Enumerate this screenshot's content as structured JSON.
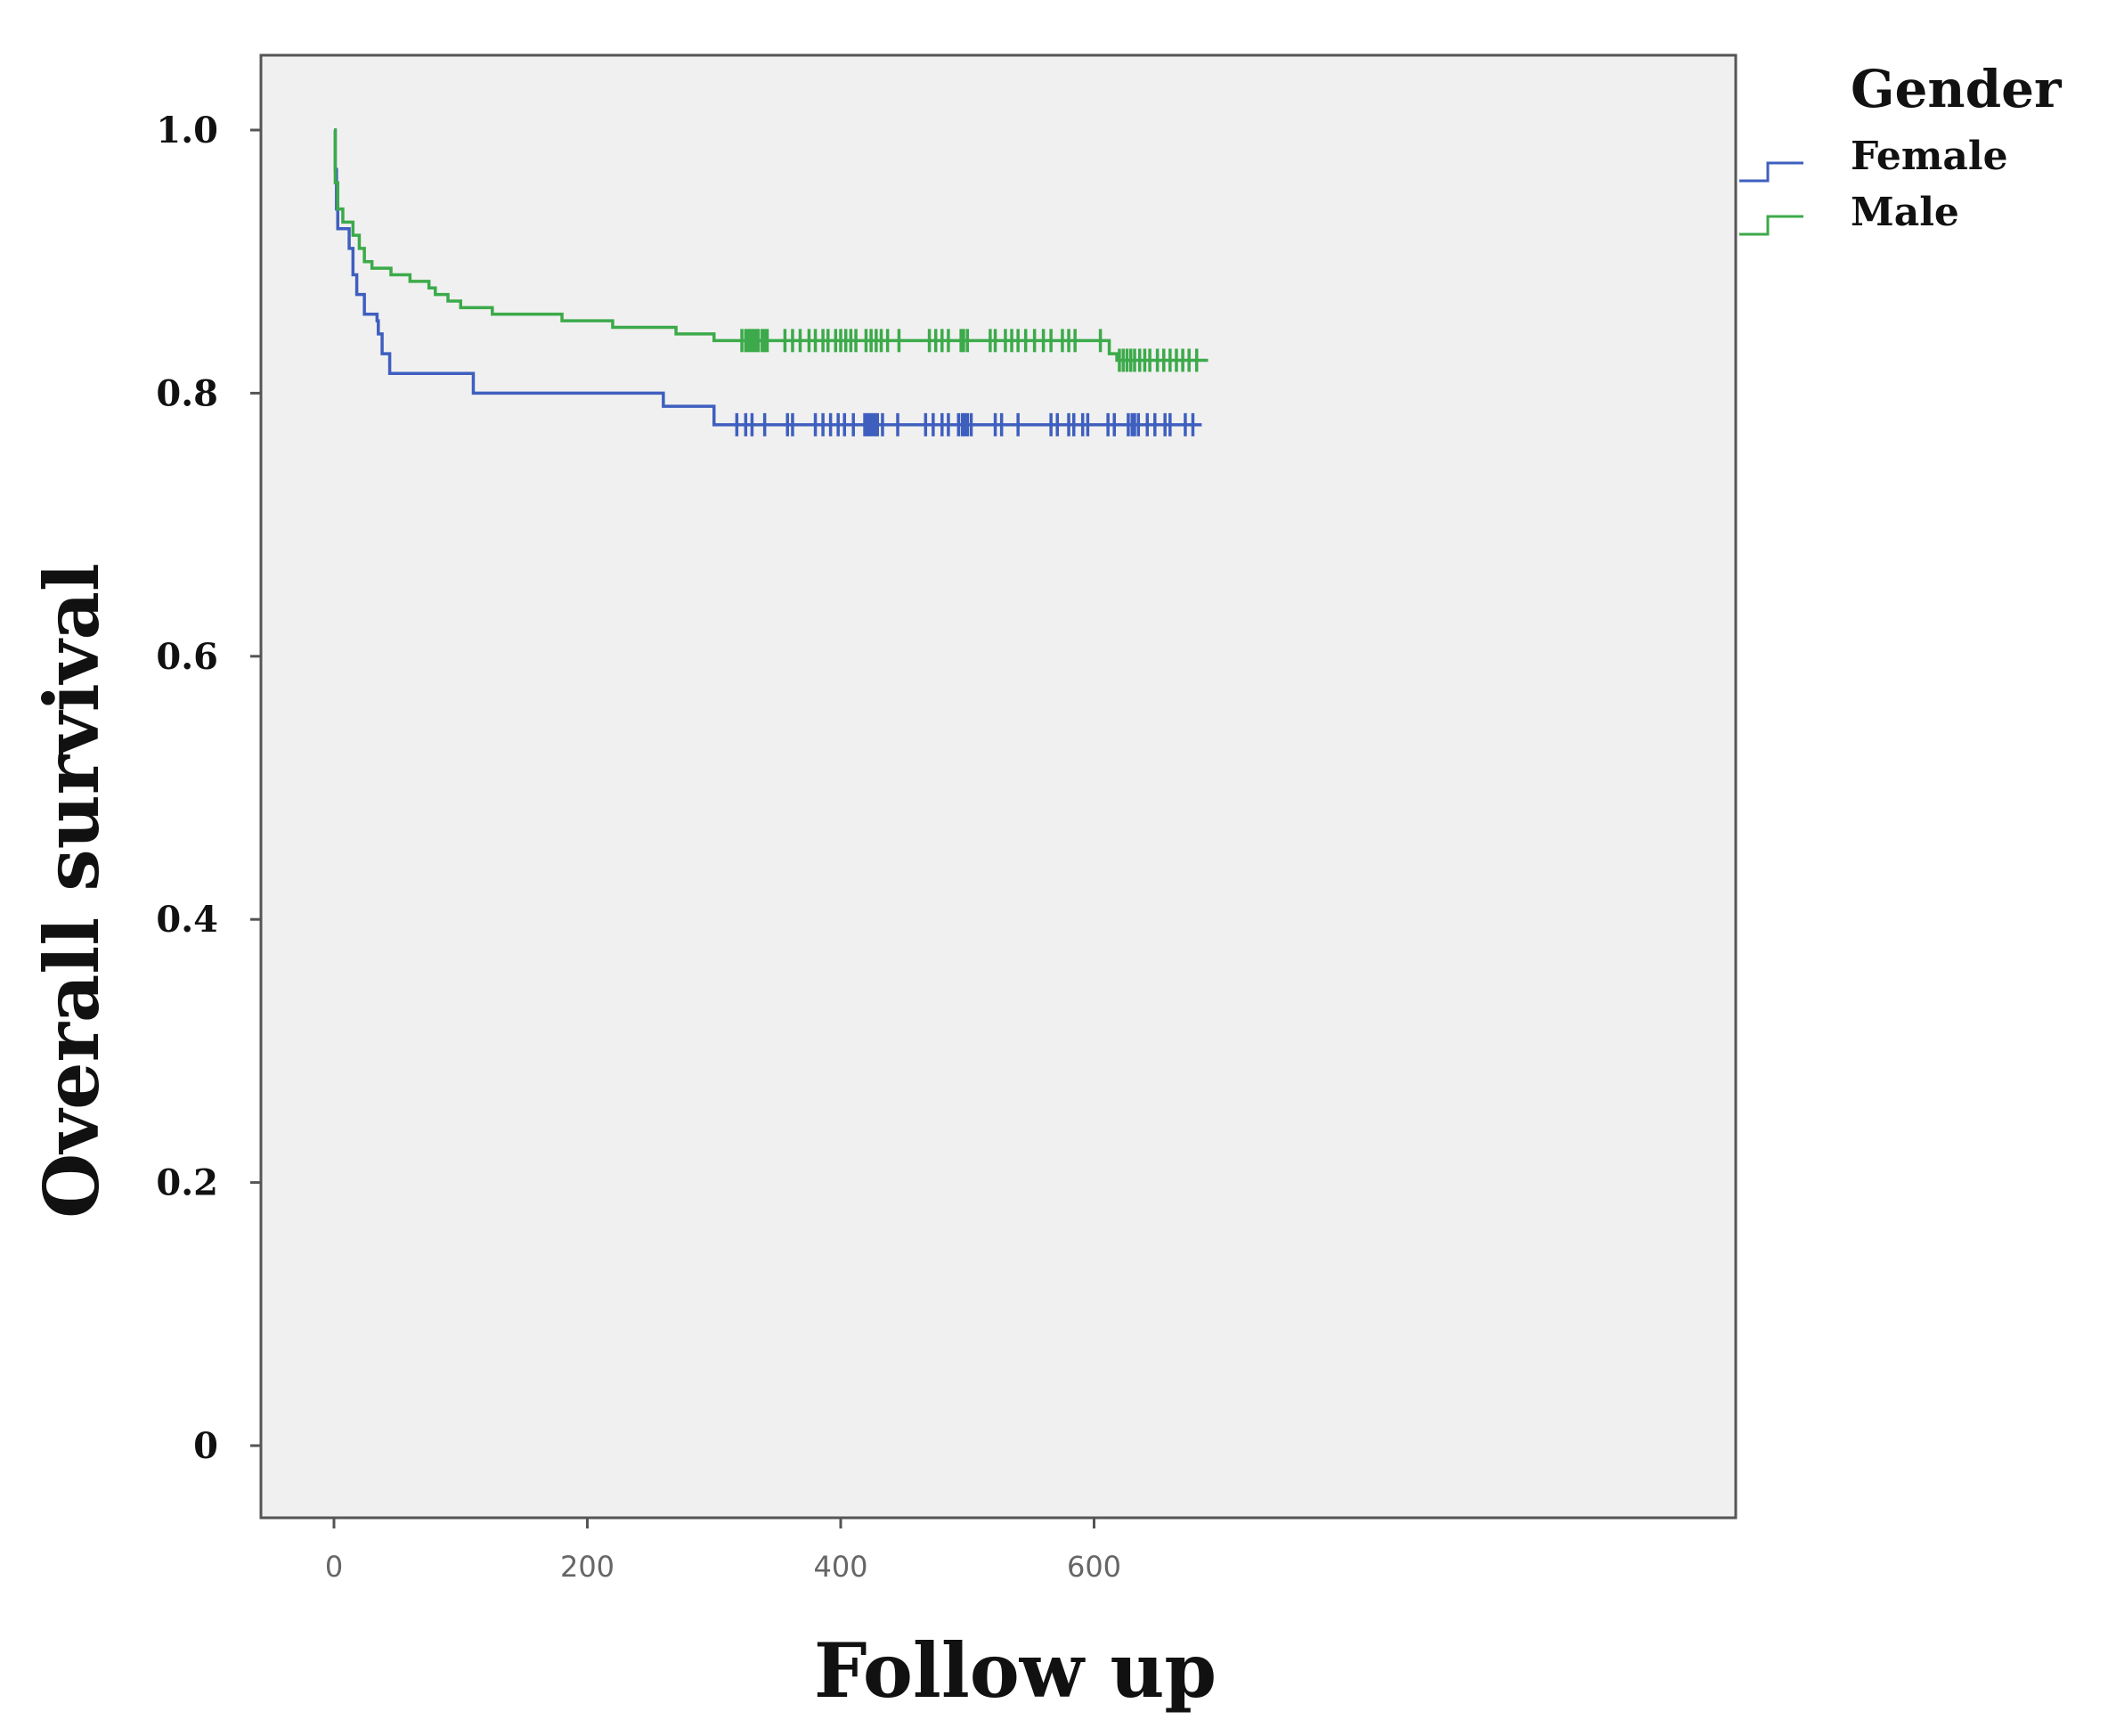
{
  "chart_data": {
    "type": "line",
    "subtype": "kaplan-meier step curve with censor marks",
    "xlabel": "Follow up",
    "ylabel": "Overall survival",
    "xlim": [
      -20,
      740
    ],
    "ylim": [
      -0.05,
      1.05
    ],
    "xticks": [
      0,
      200,
      400,
      600
    ],
    "xtick_labels": [
      "0",
      "200",
      "400",
      "600"
    ],
    "yticks": [
      0,
      0.2,
      0.4,
      0.6,
      0.8,
      1.0
    ],
    "ytick_labels": [
      "0",
      "0.2",
      "0.4",
      "0.6",
      "0.8",
      "1.0"
    ],
    "grid": false,
    "plot_background": "#f0f0f0",
    "legend": {
      "title": "Gender",
      "position": "outside-top-right"
    },
    "series": [
      {
        "name": "Female",
        "color": "#3f5fbf",
        "steps": [
          [
            0,
            1.0
          ],
          [
            1,
            0.97
          ],
          [
            2,
            0.94
          ],
          [
            3,
            0.925
          ],
          [
            12,
            0.91
          ],
          [
            15,
            0.89
          ],
          [
            18,
            0.875
          ],
          [
            24,
            0.86
          ],
          [
            34,
            0.855
          ],
          [
            35,
            0.845
          ],
          [
            38,
            0.83
          ],
          [
            44,
            0.815
          ],
          [
            110,
            0.8
          ],
          [
            260,
            0.79
          ],
          [
            300,
            0.776
          ]
        ],
        "end_x": 685,
        "censor_x": [
          318,
          325,
          330,
          340,
          358,
          362,
          380,
          386,
          392,
          398,
          403,
          410,
          419,
          421,
          423,
          425,
          427,
          429,
          433,
          445,
          467,
          473,
          480,
          485,
          493,
          496,
          498,
          500,
          503,
          522,
          527,
          540,
          566,
          571,
          580,
          584,
          591,
          595,
          611,
          616,
          627,
          630,
          632,
          635,
          642,
          648,
          656,
          660,
          672,
          678
        ]
      },
      {
        "name": "Male",
        "color": "#3caa4a",
        "steps": [
          [
            0,
            1.0
          ],
          [
            1,
            0.96
          ],
          [
            3,
            0.94
          ],
          [
            7,
            0.93
          ],
          [
            15,
            0.92
          ],
          [
            20,
            0.91
          ],
          [
            24,
            0.9
          ],
          [
            30,
            0.895
          ],
          [
            45,
            0.89
          ],
          [
            60,
            0.885
          ],
          [
            75,
            0.88
          ],
          [
            80,
            0.875
          ],
          [
            90,
            0.87
          ],
          [
            100,
            0.865
          ],
          [
            125,
            0.86
          ],
          [
            180,
            0.855
          ],
          [
            220,
            0.85
          ],
          [
            270,
            0.845
          ],
          [
            300,
            0.84
          ],
          [
            612,
            0.83
          ],
          [
            618,
            0.825
          ]
        ],
        "end_x": 690,
        "censor_x": [
          322,
          325,
          327,
          329,
          331,
          333,
          335,
          338,
          340,
          342,
          356,
          362,
          368,
          375,
          380,
          386,
          390,
          396,
          400,
          404,
          408,
          412,
          420,
          424,
          428,
          432,
          437,
          446,
          470,
          475,
          480,
          485,
          495,
          497,
          500,
          518,
          522,
          530,
          535,
          540,
          546,
          553,
          560,
          566,
          575,
          580,
          585,
          605,
          620,
          623,
          626,
          629,
          632,
          636,
          640,
          644,
          650,
          655,
          660,
          665,
          670,
          675,
          681
        ]
      }
    ]
  }
}
